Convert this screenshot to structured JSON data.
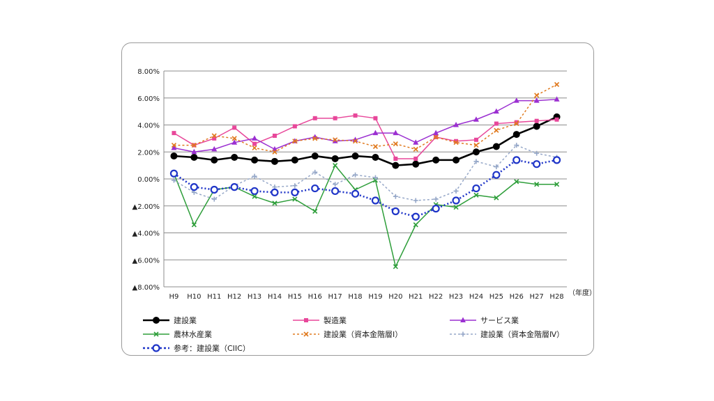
{
  "chart_data": {
    "type": "line",
    "categories": [
      "H9",
      "H10",
      "H11",
      "H12",
      "H13",
      "H14",
      "H15",
      "H16",
      "H17",
      "H18",
      "H19",
      "H20",
      "H21",
      "H22",
      "H23",
      "H24",
      "H25",
      "H26",
      "H27",
      "H28"
    ],
    "x_unit": "（年度）",
    "y_ticks": [
      "8.00%",
      "6.00%",
      "4.00%",
      "2.00%",
      "0.00%",
      "▲2.00%",
      "▲4.00%",
      "▲6.00%",
      "▲8.00%"
    ],
    "ylim": [
      -8,
      8
    ],
    "grid": true,
    "legend_position": "bottom",
    "series": [
      {
        "name": "建設業",
        "color": "#000000",
        "marker": "circle",
        "dash": "solid",
        "values": [
          1.7,
          1.6,
          1.4,
          1.6,
          1.4,
          1.3,
          1.4,
          1.7,
          1.5,
          1.7,
          1.6,
          1.0,
          1.1,
          1.4,
          1.4,
          2.0,
          2.4,
          3.3,
          3.9,
          4.6
        ]
      },
      {
        "name": "製造業",
        "color": "#e8479a",
        "marker": "square",
        "dash": "solid",
        "values": [
          3.4,
          2.5,
          3.0,
          3.8,
          2.6,
          3.2,
          3.9,
          4.5,
          4.5,
          4.7,
          4.5,
          1.5,
          1.5,
          3.1,
          2.8,
          2.9,
          4.1,
          4.2,
          4.3,
          4.4
        ]
      },
      {
        "name": "サービス業",
        "color": "#9b2fd1",
        "marker": "triangle",
        "dash": "solid",
        "values": [
          2.3,
          2.0,
          2.2,
          2.7,
          3.0,
          2.2,
          2.8,
          3.1,
          2.8,
          2.9,
          3.4,
          3.4,
          2.7,
          3.4,
          4.0,
          4.4,
          5.0,
          5.8,
          5.8,
          5.9
        ]
      },
      {
        "name": "農林水産業",
        "color": "#2e9e3a",
        "marker": "x",
        "dash": "solid",
        "values": [
          0.4,
          -3.4,
          -0.8,
          -0.6,
          -1.3,
          -1.8,
          -1.5,
          -2.4,
          1.0,
          -0.8,
          -0.1,
          -6.5,
          -3.4,
          -1.9,
          -2.1,
          -1.2,
          -1.4,
          -0.2,
          -0.4,
          -0.4
        ]
      },
      {
        "name": "建設業（資本金階層Ⅰ）",
        "color": "#e07a1f",
        "marker": "x",
        "dash": "dot",
        "values": [
          2.5,
          2.5,
          3.2,
          3.0,
          2.3,
          2.0,
          2.8,
          3.0,
          2.9,
          2.8,
          2.4,
          2.6,
          2.2,
          3.1,
          2.7,
          2.5,
          3.6,
          4.1,
          6.2,
          7.0
        ]
      },
      {
        "name": "建設業（資本金階層Ⅳ）",
        "color": "#95a7c8",
        "marker": "plus",
        "dash": "dot",
        "values": [
          -0.1,
          -1.0,
          -1.5,
          -0.5,
          0.2,
          -0.6,
          -0.5,
          0.5,
          -0.4,
          0.3,
          0.1,
          -1.3,
          -1.6,
          -1.5,
          -0.9,
          1.3,
          0.9,
          2.5,
          1.9,
          1.6
        ]
      },
      {
        "name": "参考：建設業（CIIC）",
        "color": "#1f35c8",
        "marker": "ring",
        "dash": "dot",
        "values": [
          0.4,
          -0.6,
          -0.8,
          -0.6,
          -0.9,
          -1.0,
          -1.0,
          -0.7,
          -0.9,
          -1.1,
          -1.6,
          -2.4,
          -2.8,
          -2.2,
          -1.6,
          -0.7,
          0.3,
          1.4,
          1.1,
          1.4
        ]
      }
    ]
  }
}
